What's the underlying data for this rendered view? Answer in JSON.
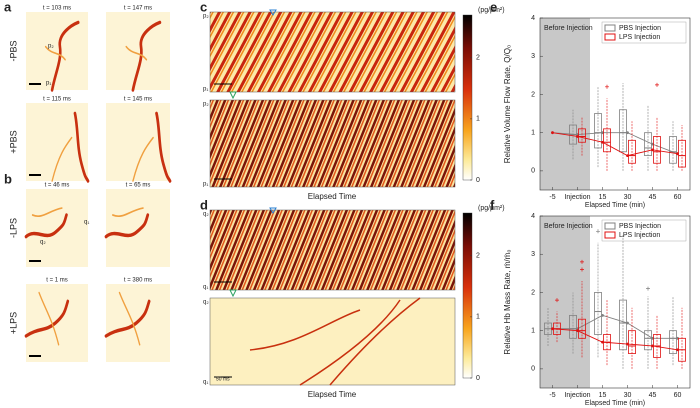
{
  "panel_labels": [
    "a",
    "b",
    "c",
    "d",
    "e",
    "f"
  ],
  "micrographs": [
    {
      "row_label": "-PBS",
      "times": [
        "t = 103 ms",
        "t = 147 ms"
      ],
      "annotations": [
        "p₂",
        "p₁"
      ]
    },
    {
      "row_label": "+PBS",
      "times": [
        "t = 115 ms",
        "t = 145 ms"
      ]
    },
    {
      "row_label": "-LPS",
      "times": [
        "t = 46 ms",
        "t = 65 ms"
      ],
      "annotations": [
        "q₁",
        "q₂"
      ]
    },
    {
      "row_label": "+LPS",
      "times": [
        "t = 1 ms",
        "t = 380 ms"
      ]
    }
  ],
  "kymographs": {
    "c": {
      "ends": [
        "p₂",
        "p₁"
      ],
      "xlabel": "Elapsed Time"
    },
    "d": {
      "ends": [
        "q₂",
        "q₁"
      ],
      "xlabel": "Elapsed Time",
      "scale_bar": "50 ms"
    }
  },
  "colorbar": {
    "label": "(pg/μm²)",
    "lim": [
      0,
      2.7
    ],
    "ticks": [
      0,
      1,
      2
    ]
  },
  "chart_data": [
    {
      "type": "box",
      "ylabel": "Relative Volume Flow Rate, Q/Q₀",
      "xlabel": "Elapsed Time (min)",
      "categories": [
        "-5",
        "Injection",
        "15",
        "30",
        "45",
        "60"
      ],
      "ylim": [
        -0.5,
        4
      ],
      "yticks": [
        0,
        1,
        2,
        3,
        4
      ],
      "shade": {
        "label": "Before Injection",
        "count": 2
      },
      "legend": "upper right",
      "series": [
        {
          "name": "PBS Injection",
          "color": "#808080",
          "means": [
            1,
            0.95,
            1,
            1,
            0.7,
            0.45
          ],
          "boxes": [
            null,
            {
              "low": 0.3,
              "q1": 0.7,
              "median": 0.95,
              "q3": 1.2,
              "high": 1.6,
              "outliers": []
            },
            {
              "low": 0.1,
              "q1": 0.6,
              "median": 1,
              "q3": 1.5,
              "high": 2.2,
              "outliers": []
            },
            {
              "low": 0,
              "q1": 0.5,
              "median": 1,
              "q3": 1.6,
              "high": 2.3,
              "outliers": []
            },
            {
              "low": 0,
              "q1": 0.4,
              "median": 0.6,
              "q3": 1,
              "high": 1.7,
              "outliers": []
            },
            {
              "low": 0,
              "q1": 0.2,
              "median": 0.5,
              "q3": 0.9,
              "high": 1.3,
              "outliers": []
            }
          ]
        },
        {
          "name": "LPS Injection",
          "color": "#e01010",
          "means": [
            1,
            0.9,
            0.75,
            0.4,
            0.55,
            0.45
          ],
          "boxes": [
            null,
            {
              "low": 0.4,
              "q1": 0.75,
              "median": 0.9,
              "q3": 1.1,
              "high": 1.4,
              "outliers": []
            },
            {
              "low": 0,
              "q1": 0.5,
              "median": 0.75,
              "q3": 1.1,
              "high": 1.9,
              "outliers": [
                2.2
              ]
            },
            {
              "low": 0,
              "q1": 0.2,
              "median": 0.4,
              "q3": 0.8,
              "high": 1.3,
              "outliers": []
            },
            {
              "low": 0,
              "q1": 0.2,
              "median": 0.5,
              "q3": 0.9,
              "high": 1.4,
              "outliers": [
                2.25
              ]
            },
            {
              "low": 0,
              "q1": 0.1,
              "median": 0.4,
              "q3": 0.8,
              "high": 1.2,
              "outliers": []
            }
          ]
        }
      ]
    },
    {
      "type": "box",
      "ylabel": "Relative Hb Mass Rate, ṁ/ṁ₀",
      "xlabel": "Elapsed Time (min)",
      "categories": [
        "-5",
        "Injection",
        "15",
        "30",
        "45",
        "60"
      ],
      "ylim": [
        -0.5,
        4
      ],
      "yticks": [
        0,
        1,
        2,
        3,
        4
      ],
      "shade": {
        "label": "Before Injection",
        "count": 2
      },
      "legend": "upper right",
      "series": [
        {
          "name": "PBS Injection",
          "color": "#808080",
          "means": [
            1.05,
            1.05,
            1.4,
            1.2,
            0.8,
            0.8
          ],
          "boxes": [
            {
              "low": 0.6,
              "q1": 0.9,
              "median": 1.05,
              "q3": 1.2,
              "high": 1.6,
              "outliers": []
            },
            {
              "low": 0.4,
              "q1": 0.8,
              "median": 1.05,
              "q3": 1.4,
              "high": 2,
              "outliers": []
            },
            {
              "low": 0.3,
              "q1": 0.9,
              "median": 1.5,
              "q3": 2,
              "high": 3.3,
              "outliers": [
                3.6
              ]
            },
            {
              "low": 0,
              "q1": 0.5,
              "median": 1.2,
              "q3": 1.8,
              "high": 3.5,
              "outliers": []
            },
            {
              "low": 0,
              "q1": 0.5,
              "median": 0.8,
              "q3": 1,
              "high": 1.9,
              "outliers": [
                2.1
              ]
            },
            {
              "low": 0.1,
              "q1": 0.4,
              "median": 0.8,
              "q3": 1,
              "high": 1.9,
              "outliers": []
            }
          ]
        },
        {
          "name": "LPS Injection",
          "color": "#e01010",
          "means": [
            1.05,
            1,
            0.7,
            0.65,
            0.6,
            0.5
          ],
          "boxes": [
            {
              "low": 0.7,
              "q1": 0.9,
              "median": 1.05,
              "q3": 1.2,
              "high": 1.5,
              "outliers": [
                1.8
              ]
            },
            {
              "low": 0.3,
              "q1": 0.8,
              "median": 1,
              "q3": 1.3,
              "high": 2.3,
              "outliers": [
                2.6,
                2.8
              ]
            },
            {
              "low": 0.1,
              "q1": 0.5,
              "median": 0.7,
              "q3": 0.9,
              "high": 1.8,
              "outliers": []
            },
            {
              "low": 0,
              "q1": 0.4,
              "median": 0.6,
              "q3": 1,
              "high": 1.6,
              "outliers": []
            },
            {
              "low": 0,
              "q1": 0.3,
              "median": 0.6,
              "q3": 0.9,
              "high": 1.4,
              "outliers": []
            },
            {
              "low": 0,
              "q1": 0.2,
              "median": 0.5,
              "q3": 0.8,
              "high": 1.6,
              "outliers": []
            }
          ]
        }
      ]
    }
  ]
}
